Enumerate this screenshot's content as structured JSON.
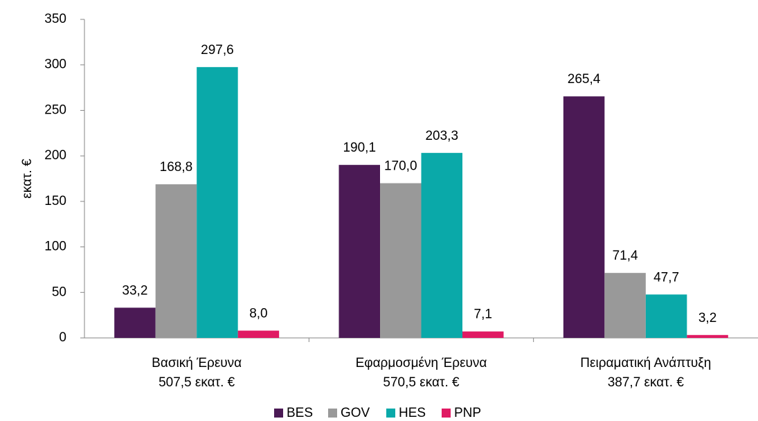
{
  "chart_data": {
    "type": "bar",
    "y_axis_label": "εκατ. €",
    "categories": [
      "Βασική Έρευνα",
      "Εφαρμοσμένη Έρευνα",
      "Πειραματική Ανάπτυξη"
    ],
    "category_totals": [
      "507,5 εκατ. €",
      "570,5 εκατ. €",
      "387,7 εκατ. €"
    ],
    "series": [
      {
        "name": "BES",
        "color": "#4b1a55",
        "values": [
          33.2,
          190.1,
          265.4
        ],
        "value_labels": [
          "33,2",
          "190,1",
          "265,4"
        ]
      },
      {
        "name": "GOV",
        "color": "#999999",
        "values": [
          168.8,
          170.0,
          71.4
        ],
        "value_labels": [
          "168,8",
          "170,0",
          "71,4"
        ]
      },
      {
        "name": "HES",
        "color": "#0aa9a9",
        "values": [
          297.6,
          203.3,
          47.7
        ],
        "value_labels": [
          "297,6",
          "203,3",
          "47,7"
        ]
      },
      {
        "name": "PNP",
        "color": "#e01a63",
        "values": [
          8.0,
          7.1,
          3.2
        ],
        "value_labels": [
          "8,0",
          "7,1",
          "3,2"
        ]
      }
    ],
    "ylim": [
      0,
      350
    ],
    "yticks": [
      0,
      50,
      100,
      150,
      200,
      250,
      300,
      350
    ],
    "grid": false,
    "legend": "bottom"
  }
}
